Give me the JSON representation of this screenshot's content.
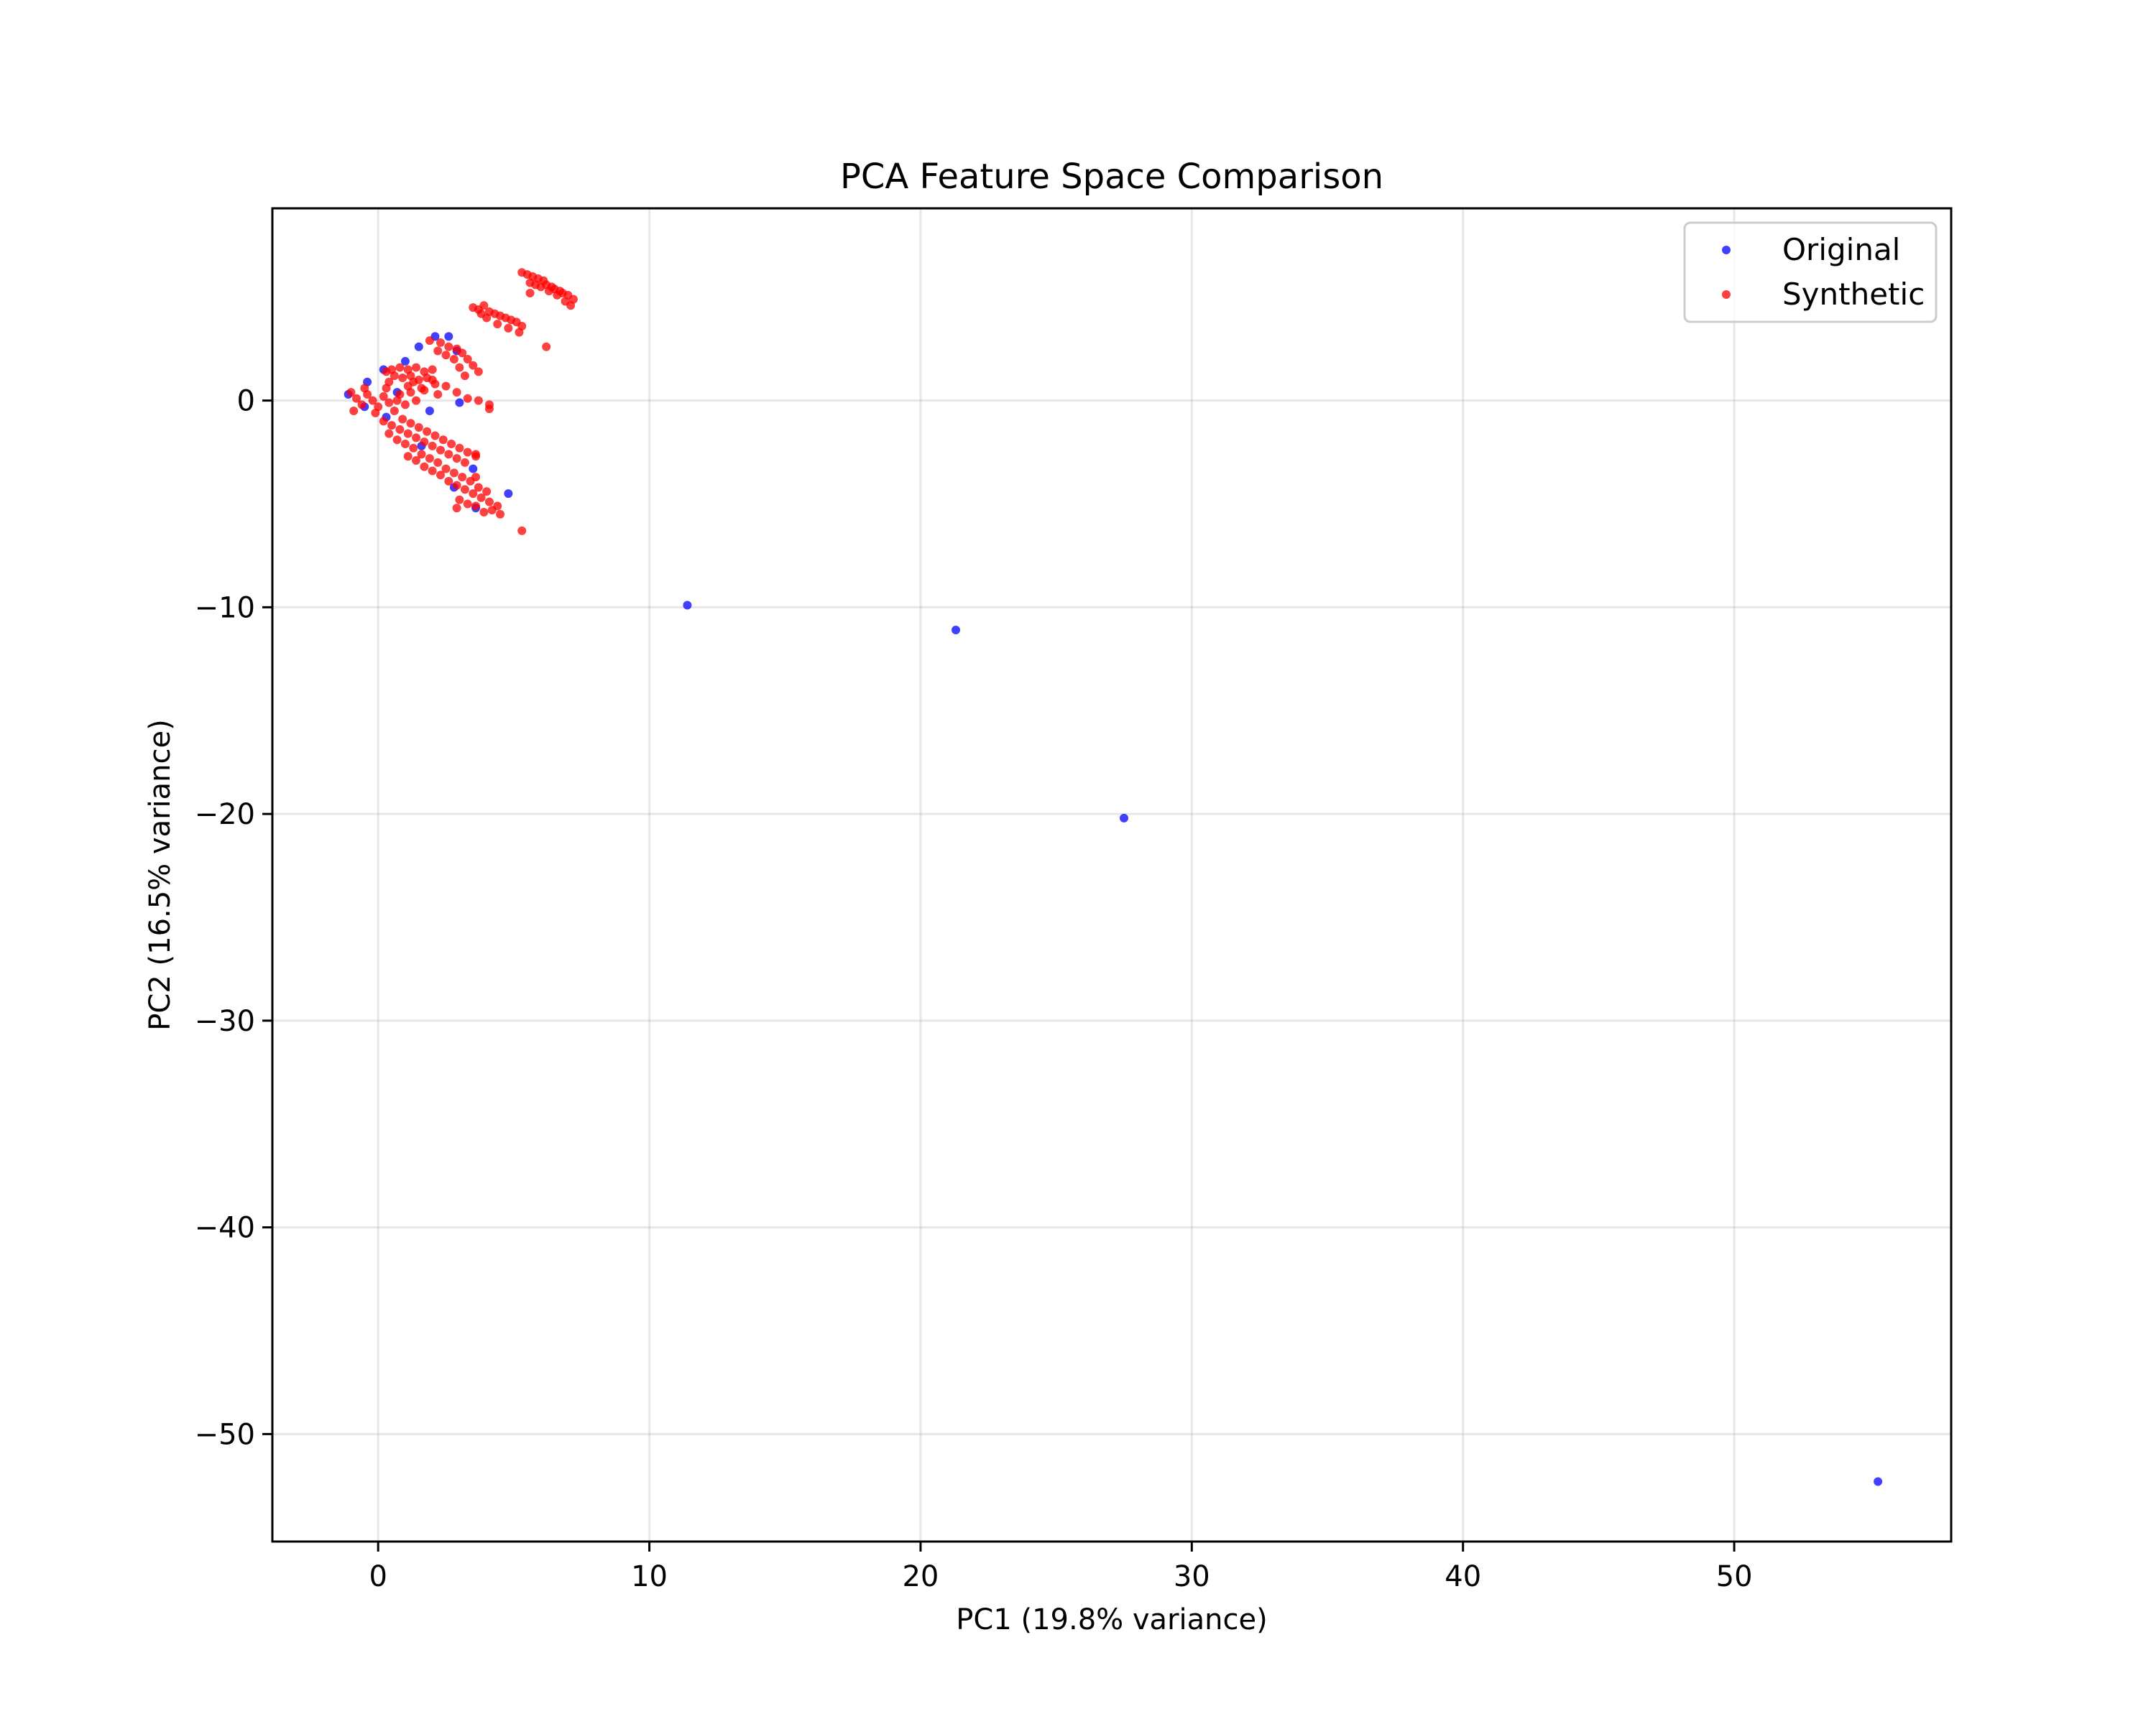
{
  "chart_data": {
    "type": "scatter",
    "title": "PCA Feature Space Comparison",
    "xlabel": "PC1 (19.8% variance)",
    "ylabel": "PC2 (16.5% variance)",
    "xlim": [
      -3.9,
      58.0
    ],
    "ylim": [
      -55.2,
      9.3
    ],
    "xticks": [
      0,
      10,
      20,
      30,
      40,
      50
    ],
    "yticks": [
      0,
      -10,
      -20,
      -30,
      -40,
      -50
    ],
    "grid": true,
    "legend_position": "top-right",
    "series": [
      {
        "name": "Original",
        "color": "#0000ff",
        "points": [
          [
            11.4,
            -9.9
          ],
          [
            21.3,
            -11.1
          ],
          [
            27.5,
            -20.2
          ],
          [
            55.3,
            -52.3
          ],
          [
            4.8,
            -4.5
          ],
          [
            3.5,
            -3.3
          ],
          [
            3.0,
            -0.1
          ],
          [
            2.6,
            3.1
          ],
          [
            2.1,
            3.1
          ],
          [
            1.5,
            2.6
          ],
          [
            1.0,
            1.9
          ],
          [
            1.9,
            -0.5
          ],
          [
            -1.1,
            0.3
          ],
          [
            -0.4,
            0.9
          ],
          [
            0.2,
            1.5
          ],
          [
            -0.5,
            -0.3
          ],
          [
            0.7,
            0.4
          ],
          [
            2.8,
            -4.2
          ],
          [
            3.6,
            -5.2
          ],
          [
            2.9,
            2.4
          ],
          [
            1.6,
            -2.2
          ],
          [
            0.3,
            -0.8
          ]
        ]
      },
      {
        "name": "Synthetic",
        "color": "#ff0000",
        "points": [
          [
            5.3,
            6.2
          ],
          [
            5.5,
            6.1
          ],
          [
            5.7,
            6.0
          ],
          [
            5.9,
            5.9
          ],
          [
            6.1,
            5.8
          ],
          [
            6.2,
            5.6
          ],
          [
            6.4,
            5.5
          ],
          [
            6.5,
            5.4
          ],
          [
            6.7,
            5.3
          ],
          [
            6.8,
            5.2
          ],
          [
            7.0,
            5.1
          ],
          [
            7.2,
            4.9
          ],
          [
            5.6,
            5.7
          ],
          [
            5.8,
            5.6
          ],
          [
            6.0,
            5.5
          ],
          [
            6.3,
            5.3
          ],
          [
            6.6,
            5.1
          ],
          [
            6.9,
            4.8
          ],
          [
            7.1,
            4.6
          ],
          [
            5.6,
            5.2
          ],
          [
            6.2,
            2.6
          ],
          [
            3.5,
            4.5
          ],
          [
            3.7,
            4.4
          ],
          [
            3.9,
            4.6
          ],
          [
            4.1,
            4.3
          ],
          [
            4.3,
            4.2
          ],
          [
            4.5,
            4.1
          ],
          [
            4.7,
            4.0
          ],
          [
            4.9,
            3.9
          ],
          [
            5.1,
            3.8
          ],
          [
            5.3,
            3.6
          ],
          [
            3.8,
            4.2
          ],
          [
            4.0,
            4.0
          ],
          [
            4.4,
            3.7
          ],
          [
            4.8,
            3.5
          ],
          [
            5.2,
            3.3
          ],
          [
            1.9,
            2.9
          ],
          [
            2.3,
            2.8
          ],
          [
            2.6,
            2.6
          ],
          [
            2.9,
            2.5
          ],
          [
            3.1,
            2.3
          ],
          [
            3.3,
            2.0
          ],
          [
            3.5,
            1.7
          ],
          [
            3.7,
            1.4
          ],
          [
            2.2,
            2.4
          ],
          [
            2.5,
            2.2
          ],
          [
            2.8,
            2.0
          ],
          [
            3.0,
            1.6
          ],
          [
            3.2,
            1.2
          ],
          [
            2.1,
            0.8
          ],
          [
            2.5,
            0.7
          ],
          [
            2.9,
            0.4
          ],
          [
            3.3,
            0.1
          ],
          [
            3.7,
            0.0
          ],
          [
            4.1,
            -0.2
          ],
          [
            4.1,
            -0.4
          ],
          [
            -1.0,
            0.4
          ],
          [
            -0.8,
            0.1
          ],
          [
            -0.6,
            -0.2
          ],
          [
            -0.4,
            0.3
          ],
          [
            -0.2,
            0.0
          ],
          [
            0.0,
            -0.3
          ],
          [
            0.2,
            0.2
          ],
          [
            0.4,
            -0.1
          ],
          [
            0.6,
            -0.5
          ],
          [
            0.8,
            0.3
          ],
          [
            1.0,
            -0.2
          ],
          [
            1.2,
            0.4
          ],
          [
            -0.9,
            -0.5
          ],
          [
            -0.5,
            0.6
          ],
          [
            -0.1,
            -0.6
          ],
          [
            0.3,
            0.6
          ],
          [
            0.7,
            0.0
          ],
          [
            1.1,
            0.7
          ],
          [
            1.4,
            0.0
          ],
          [
            1.6,
            0.6
          ],
          [
            0.3,
            1.4
          ],
          [
            0.5,
            1.5
          ],
          [
            0.8,
            1.6
          ],
          [
            1.1,
            1.5
          ],
          [
            1.4,
            1.6
          ],
          [
            1.7,
            1.4
          ],
          [
            2.0,
            1.5
          ],
          [
            0.6,
            1.2
          ],
          [
            0.9,
            1.1
          ],
          [
            1.2,
            1.2
          ],
          [
            1.5,
            1.0
          ],
          [
            1.8,
            1.1
          ],
          [
            0.4,
            0.9
          ],
          [
            1.3,
            0.9
          ],
          [
            2.0,
            1.0
          ],
          [
            1.7,
            0.5
          ],
          [
            2.2,
            0.3
          ],
          [
            0.2,
            -1.0
          ],
          [
            0.5,
            -1.2
          ],
          [
            0.8,
            -1.4
          ],
          [
            1.1,
            -1.6
          ],
          [
            1.4,
            -1.8
          ],
          [
            1.7,
            -2.0
          ],
          [
            2.0,
            -2.2
          ],
          [
            2.3,
            -2.4
          ],
          [
            2.6,
            -2.6
          ],
          [
            2.9,
            -2.8
          ],
          [
            3.2,
            -3.0
          ],
          [
            0.4,
            -1.6
          ],
          [
            0.7,
            -1.9
          ],
          [
            1.0,
            -2.1
          ],
          [
            1.3,
            -2.3
          ],
          [
            1.6,
            -2.6
          ],
          [
            1.9,
            -2.8
          ],
          [
            2.2,
            -3.0
          ],
          [
            2.5,
            -3.3
          ],
          [
            2.8,
            -3.5
          ],
          [
            3.1,
            -3.7
          ],
          [
            3.4,
            -3.9
          ],
          [
            0.9,
            -0.9
          ],
          [
            1.2,
            -1.1
          ],
          [
            1.5,
            -1.3
          ],
          [
            1.8,
            -1.5
          ],
          [
            2.1,
            -1.7
          ],
          [
            2.4,
            -1.9
          ],
          [
            2.7,
            -2.1
          ],
          [
            3.0,
            -2.3
          ],
          [
            3.3,
            -2.5
          ],
          [
            3.6,
            -2.7
          ],
          [
            1.1,
            -2.7
          ],
          [
            1.4,
            -2.9
          ],
          [
            1.7,
            -3.2
          ],
          [
            2.0,
            -3.4
          ],
          [
            2.3,
            -3.6
          ],
          [
            2.6,
            -3.9
          ],
          [
            2.9,
            -4.1
          ],
          [
            3.2,
            -4.3
          ],
          [
            3.5,
            -4.5
          ],
          [
            3.8,
            -4.7
          ],
          [
            4.1,
            -4.9
          ],
          [
            4.4,
            -5.1
          ],
          [
            3.0,
            -4.8
          ],
          [
            3.3,
            -5.0
          ],
          [
            3.6,
            -5.1
          ],
          [
            3.9,
            -5.4
          ],
          [
            4.2,
            -5.3
          ],
          [
            4.5,
            -5.5
          ],
          [
            2.9,
            -5.2
          ],
          [
            3.7,
            -4.2
          ],
          [
            4.0,
            -4.4
          ],
          [
            3.6,
            -3.7
          ],
          [
            3.6,
            -2.6
          ],
          [
            5.3,
            -6.3
          ]
        ]
      }
    ]
  }
}
